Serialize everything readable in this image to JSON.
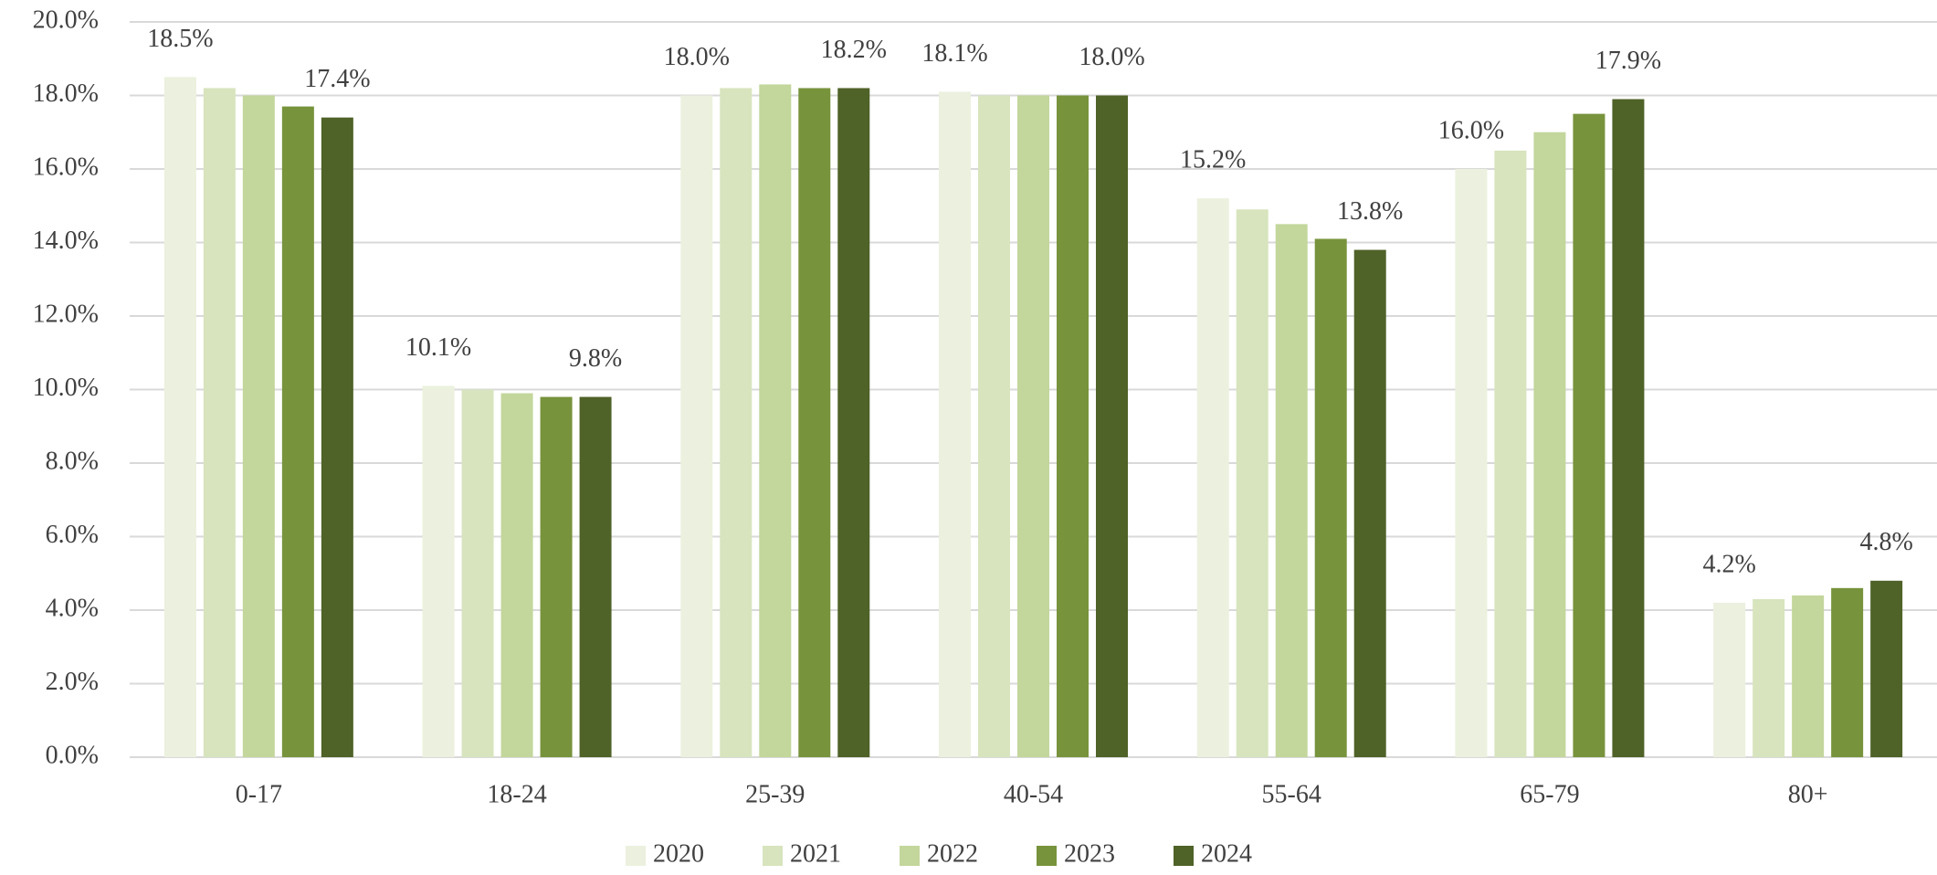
{
  "chart_data": {
    "type": "bar",
    "categories": [
      "0-17",
      "18-24",
      "25-39",
      "40-54",
      "55-64",
      "65-79",
      "80+"
    ],
    "series": [
      {
        "name": "2020",
        "color": "#ebf1de",
        "values": [
          18.5,
          10.1,
          18.0,
          18.1,
          15.2,
          16.0,
          4.2
        ],
        "value_labels": [
          "18.5%",
          "10.1%",
          "18.0%",
          "18.1%",
          "15.2%",
          "16.0%",
          "4.2%"
        ]
      },
      {
        "name": "2021",
        "color": "#d7e4bd",
        "values": [
          18.2,
          10.0,
          18.2,
          18.0,
          14.9,
          16.5,
          4.3
        ]
      },
      {
        "name": "2022",
        "color": "#c3d69b",
        "values": [
          18.0,
          9.9,
          18.3,
          18.0,
          14.5,
          17.0,
          4.4
        ]
      },
      {
        "name": "2023",
        "color": "#77933c",
        "values": [
          17.7,
          9.8,
          18.2,
          18.0,
          14.1,
          17.5,
          4.6
        ]
      },
      {
        "name": "2024",
        "color": "#4f6228",
        "values": [
          17.4,
          9.8,
          18.2,
          18.0,
          13.8,
          17.9,
          4.8
        ],
        "value_labels": [
          "17.4%",
          "9.8%",
          "18.2%",
          "18.0%",
          "13.8%",
          "17.9%",
          "4.8%"
        ]
      }
    ],
    "ylim": [
      0,
      20
    ],
    "yticks": [
      {
        "value": 0,
        "label": "0.0%"
      },
      {
        "value": 2,
        "label": "2.0%"
      },
      {
        "value": 4,
        "label": "4.0%"
      },
      {
        "value": 6,
        "label": "6.0%"
      },
      {
        "value": 8,
        "label": "8.0%"
      },
      {
        "value": 10,
        "label": "10.0%"
      },
      {
        "value": 12,
        "label": "12.0%"
      },
      {
        "value": 14,
        "label": "14.0%"
      },
      {
        "value": 16,
        "label": "16.0%"
      },
      {
        "value": 18,
        "label": "18.0%"
      },
      {
        "value": 20,
        "label": "20.0%"
      }
    ],
    "grid": true,
    "legend": "bottom"
  }
}
